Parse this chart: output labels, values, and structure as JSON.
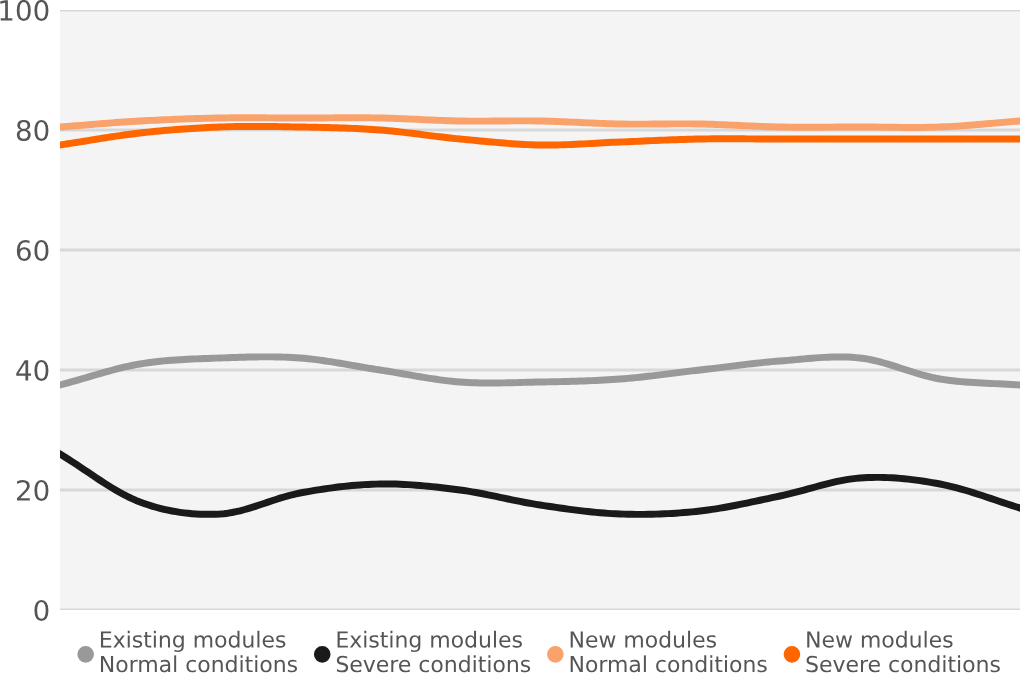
{
  "chart_data": {
    "type": "line",
    "categories": [
      null,
      null,
      null,
      null,
      null,
      null,
      null,
      null,
      null,
      null,
      null,
      null,
      null
    ],
    "series": [
      {
        "name": "Existing modules\nNormal conditions",
        "color": "#999999",
        "values": [
          37.5,
          41,
          42,
          42,
          40,
          38,
          38,
          38.5,
          40,
          41.5,
          42,
          38.5,
          37.5
        ]
      },
      {
        "name": "Existing modules\nSevere conditions",
        "color": "#1a1a1a",
        "values": [
          26,
          18,
          16,
          19.5,
          21,
          20,
          17.5,
          16,
          16.5,
          19,
          22,
          21,
          17
        ]
      },
      {
        "name": "New modules\nNormal conditions",
        "color": "#f9a26c",
        "values": [
          80.5,
          81.5,
          82,
          82,
          82,
          81.5,
          81.5,
          81,
          81,
          80.5,
          80.5,
          80.5,
          81.5
        ]
      },
      {
        "name": "New modules\nSevere conditions",
        "color": "#ff6600",
        "values": [
          77.5,
          79.5,
          80.5,
          80.5,
          80,
          78.5,
          77.5,
          78,
          78.5,
          78.5,
          78.5,
          78.5,
          78.5
        ]
      }
    ],
    "ylim": [
      0,
      100
    ],
    "yticks": [
      0,
      20,
      40,
      60,
      80,
      100
    ],
    "grid": "y",
    "legend": "bottom",
    "marker": "none",
    "line_style": "solid",
    "tick_labels": "y"
  }
}
